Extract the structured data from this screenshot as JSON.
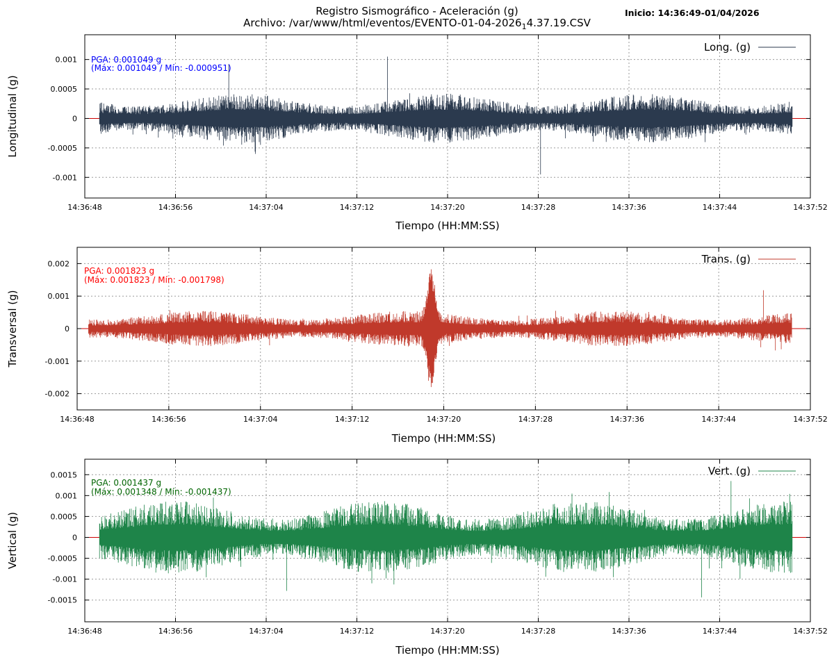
{
  "header": {
    "title_line1": "Registro Sismográfico - Aceleración (g)",
    "title_line2_prefix": "Archivo: /var/www/html/eventos/EVENTO-01-04-2026",
    "title_line2_sub": "1",
    "title_line2_suffix": "4.37.19.CSV",
    "start_label": "Inicio: 14:36:49-01/04/2026"
  },
  "colors": {
    "long": "#2b3a4e",
    "trans": "#c0392b",
    "vert": "#1e8449",
    "zero_line": "#cc0000",
    "grid": "#9a9a9a",
    "label_long": "#0000ff",
    "label_trans": "#ff0000",
    "label_vert": "#006400"
  },
  "chart_data": [
    {
      "type": "line",
      "xlabel": "Tiempo (HH:MM:SS)",
      "ylabel": "Longitudinal (g)",
      "legend": "Long. (g)",
      "legend_position": "top-right",
      "grid": true,
      "xlim": [
        "14:36:48",
        "14:37:52"
      ],
      "x_ticks": [
        "14:36:48",
        "14:36:56",
        "14:37:04",
        "14:37:12",
        "14:37:20",
        "14:37:28",
        "14:37:36",
        "14:37:44",
        "14:37:52"
      ],
      "ylim": [
        -0.00135,
        0.00142
      ],
      "y_ticks": [
        0.001,
        0.0005,
        0,
        -0.0005,
        -0.001
      ],
      "y_tick_labels": [
        "0.001",
        "0.0005",
        "0",
        "-0.0005",
        "-0.001"
      ],
      "data_range_seconds": [
        "14:36:49.3",
        "14:37:50.4"
      ],
      "pga_text": "PGA: 0.001049 g",
      "maxmin_text": "(Máx: 0.001049 / Mín: -0.000951)",
      "max": 0.001049,
      "min": -0.000951,
      "noise_amplitude": 0.00042,
      "events": [
        {
          "t": "14:37:00.7",
          "value": 0.00092
        },
        {
          "t": "14:37:14.7",
          "value": 0.001049
        },
        {
          "t": "14:37:28.2",
          "value": -0.000951
        }
      ]
    },
    {
      "type": "line",
      "xlabel": "Tiempo (HH:MM:SS)",
      "ylabel": "Transversal (g)",
      "legend": "Trans. (g)",
      "legend_position": "top-right",
      "grid": true,
      "xlim": [
        "14:36:48",
        "14:37:52"
      ],
      "x_ticks": [
        "14:36:48",
        "14:36:56",
        "14:37:04",
        "14:37:12",
        "14:37:20",
        "14:37:28",
        "14:37:36",
        "14:37:44",
        "14:37:52"
      ],
      "ylim": [
        -0.0025,
        0.0025
      ],
      "y_ticks": [
        0.002,
        0.001,
        0,
        -0.001,
        -0.002
      ],
      "y_tick_labels": [
        "0.002",
        "0.001",
        "0",
        "-0.001",
        "-0.002"
      ],
      "data_range_seconds": [
        "14:36:49.0",
        "14:37:50.4"
      ],
      "pga_text": "PGA: 0.001823 g",
      "maxmin_text": "(Máx: 0.001823 / Mín: -0.001798)",
      "max": 0.001823,
      "min": -0.001798,
      "noise_amplitude": 0.00055,
      "burst": {
        "t": "14:37:18.9",
        "peak": 0.001823
      },
      "events": [
        {
          "t": "14:37:47.9",
          "value": 0.00118
        }
      ]
    },
    {
      "type": "line",
      "xlabel": "Tiempo (HH:MM:SS)",
      "ylabel": "Vertical (g)",
      "legend": "Vert. (g)",
      "legend_position": "top-right",
      "grid": true,
      "xlim": [
        "14:36:48",
        "14:37:52"
      ],
      "x_ticks": [
        "14:36:48",
        "14:36:56",
        "14:37:04",
        "14:37:12",
        "14:37:20",
        "14:37:28",
        "14:37:36",
        "14:37:44",
        "14:37:52"
      ],
      "ylim": [
        -0.00202,
        0.00187
      ],
      "y_ticks": [
        0.0015,
        0.001,
        0.0005,
        0,
        -0.0005,
        -0.001,
        -0.0015
      ],
      "y_tick_labels": [
        "0.0015",
        "0.001",
        "0.0005",
        "0",
        "-0.0005",
        "-0.001",
        "-0.0015"
      ],
      "data_range_seconds": [
        "14:36:49.3",
        "14:37:50.4"
      ],
      "pga_text": "PGA: 0.001437 g",
      "maxmin_text": "(Máx: 0.001348 / Mín: -0.001437)",
      "max": 0.001348,
      "min": -0.001437,
      "noise_amplitude": 0.00088,
      "events": [
        {
          "t": "14:37:42.4",
          "value": -0.001437
        },
        {
          "t": "14:37:45.0",
          "value": 0.001348
        },
        {
          "t": "14:37:05.8",
          "value": -0.00128
        }
      ]
    }
  ]
}
